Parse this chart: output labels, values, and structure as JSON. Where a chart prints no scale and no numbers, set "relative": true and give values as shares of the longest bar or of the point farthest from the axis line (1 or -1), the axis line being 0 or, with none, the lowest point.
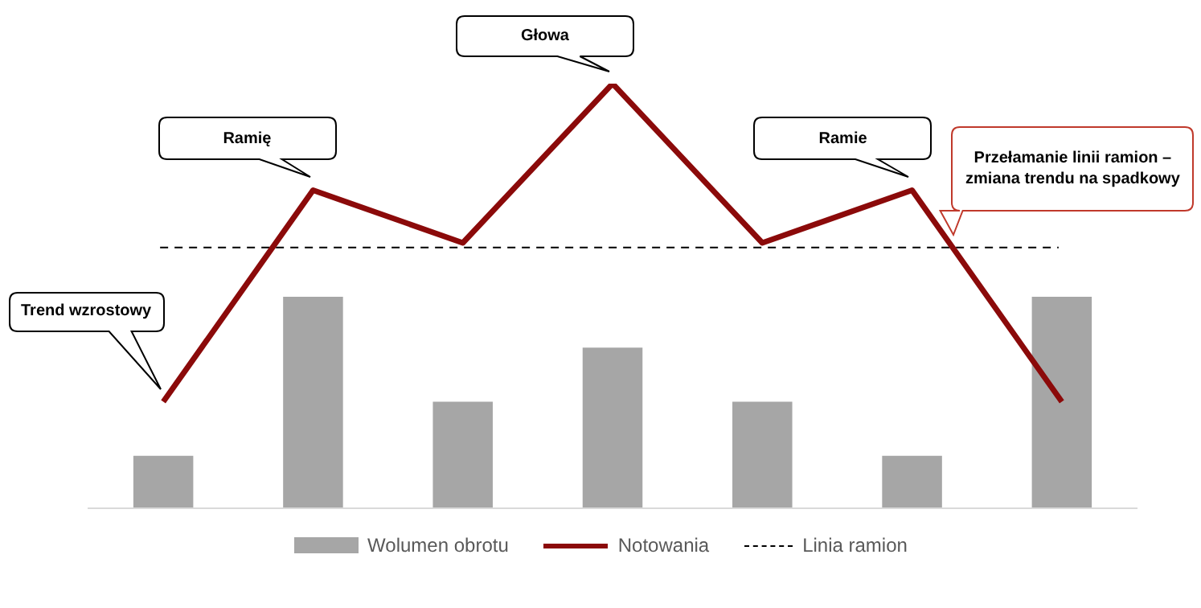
{
  "chart_data": [
    {
      "type": "bar",
      "relative": true,
      "categories": [
        null,
        null,
        null,
        null,
        null,
        null,
        null
      ],
      "series": [
        {
          "name": "Wolumen obrotu",
          "color": "#a6a6a6",
          "values": [
            0.248,
            1,
            0.504,
            0.76,
            0.504,
            0.248,
            1
          ]
        }
      ],
      "legend": "bottom",
      "grid": false
    },
    {
      "type": "line",
      "relative": true,
      "categories": [
        null,
        null,
        null,
        null,
        null,
        null,
        null
      ],
      "series": [
        {
          "name": "Notowania",
          "color": "#8b0a0a",
          "values": [
            0.251,
            0.749,
            0.625,
            1,
            0.625,
            0.749,
            0.251
          ]
        }
      ],
      "ref_lines": [
        {
          "axis": "y",
          "value": 0.614,
          "label": "Linia ramion",
          "color": "#000000",
          "line_style": "dashed"
        }
      ],
      "annotations": [
        "Trend wzrostowy",
        "Ramię",
        "Głowa",
        "Ramie",
        "Przełamanie linii ramion – zmiana trendu na spadkowy"
      ],
      "legend": "bottom",
      "grid": false
    }
  ]
}
